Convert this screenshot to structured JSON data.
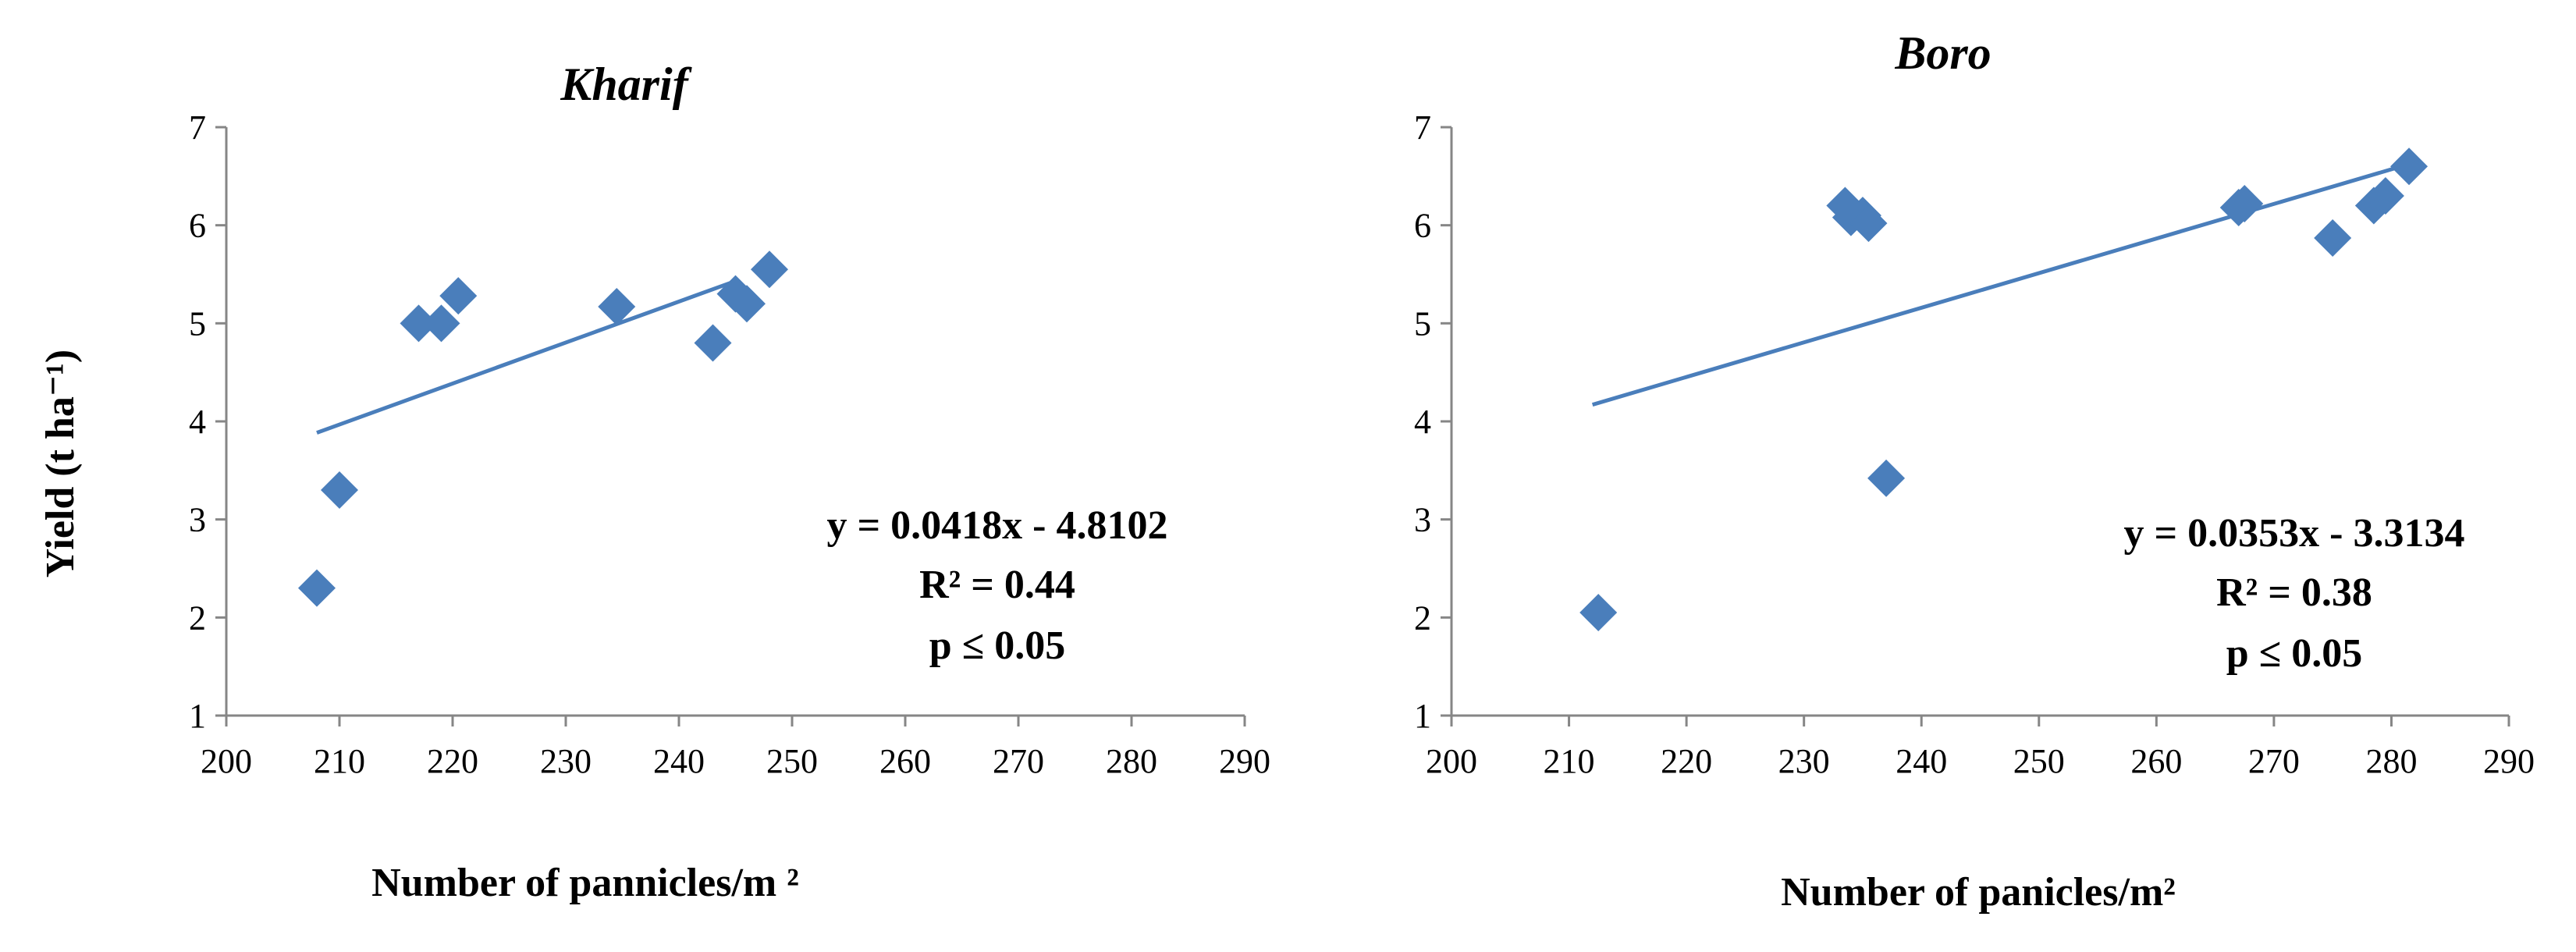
{
  "chart_data": [
    {
      "type": "scatter",
      "title": "Kharif",
      "xlabel": "Number of pannicles/m ²",
      "ylabel": "Yield (t ha⁻¹)",
      "xlim": [
        200,
        290
      ],
      "ylim": [
        1,
        7
      ],
      "xticks": [
        "200",
        "210",
        "220",
        "230",
        "240",
        "250",
        "260",
        "270",
        "280",
        "290"
      ],
      "yticks": [
        "1",
        "2",
        "3",
        "4",
        "5",
        "6",
        "7"
      ],
      "grid": false,
      "marker_color": "#4a7ebb",
      "line_color": "#4a7ebb",
      "points": [
        {
          "x": 208.0,
          "y": 2.3
        },
        {
          "x": 210.0,
          "y": 3.3
        },
        {
          "x": 217.0,
          "y": 5.0
        },
        {
          "x": 219.0,
          "y": 5.0
        },
        {
          "x": 220.5,
          "y": 5.28
        },
        {
          "x": 234.5,
          "y": 5.17
        },
        {
          "x": 243.0,
          "y": 4.8
        },
        {
          "x": 245.0,
          "y": 5.3
        },
        {
          "x": 246.0,
          "y": 5.2
        },
        {
          "x": 248.0,
          "y": 5.55
        }
      ],
      "trendline": {
        "slope": 0.0418,
        "intercept": -4.8102,
        "x_range": [
          208,
          245
        ]
      },
      "annotations": [
        "y = 0.0418x - 4.8102",
        "R² = 0.44",
        "p ≤ 0.05"
      ]
    },
    {
      "type": "scatter",
      "title": "Boro",
      "xlabel": "Number of  panicles/m²",
      "ylabel": "",
      "xlim": [
        200,
        290
      ],
      "ylim": [
        1,
        7
      ],
      "xticks": [
        "200",
        "210",
        "220",
        "230",
        "240",
        "250",
        "260",
        "270",
        "280",
        "290"
      ],
      "yticks": [
        "1",
        "2",
        "3",
        "4",
        "5",
        "6",
        "7"
      ],
      "grid": false,
      "marker_color": "#4a7ebb",
      "line_color": "#4a7ebb",
      "points": [
        {
          "x": 212.5,
          "y": 2.05
        },
        {
          "x": 233.5,
          "y": 6.2
        },
        {
          "x": 234.0,
          "y": 6.08
        },
        {
          "x": 235.0,
          "y": 6.1
        },
        {
          "x": 235.5,
          "y": 6.02
        },
        {
          "x": 237.0,
          "y": 3.42
        },
        {
          "x": 267.0,
          "y": 6.18
        },
        {
          "x": 267.5,
          "y": 6.22
        },
        {
          "x": 275.0,
          "y": 5.87
        },
        {
          "x": 278.5,
          "y": 6.2
        },
        {
          "x": 279.5,
          "y": 6.3
        },
        {
          "x": 281.5,
          "y": 6.6
        }
      ],
      "trendline": {
        "slope": 0.0353,
        "intercept": -3.3134,
        "x_range": [
          212,
          281
        ]
      },
      "annotations": [
        "y = 0.0353x - 3.3134",
        "R² = 0.38",
        "p ≤ 0.05"
      ]
    }
  ]
}
